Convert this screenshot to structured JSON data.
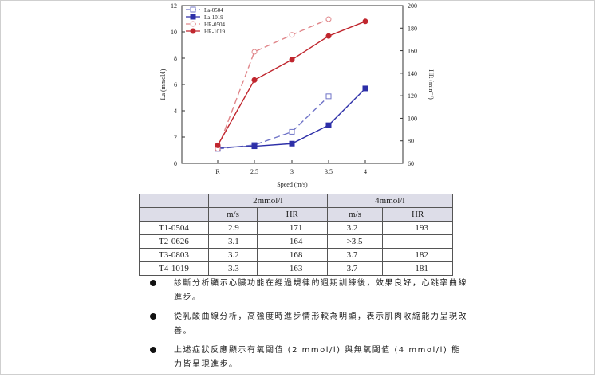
{
  "chart_data": {
    "type": "line",
    "categories": [
      "R",
      "2.5",
      "3",
      "3.5",
      "4"
    ],
    "xlabel": "Speed (m/s)",
    "ylabel_left": "La (mmol/l)",
    "ylabel_right": "HR (min⁻¹)",
    "ylim_left": [
      0,
      12
    ],
    "yticks_left": [
      "0",
      "2",
      "4",
      "6",
      "8",
      "10",
      "12"
    ],
    "ylim_right": [
      60,
      200
    ],
    "yticks_right": [
      "60",
      "80",
      "100",
      "120",
      "140",
      "160",
      "180",
      "200"
    ],
    "legend_position": "top-left",
    "series": [
      {
        "name": "La-0504",
        "axis": "left",
        "color": "#6f73c7",
        "marker": "open-square",
        "dash": true,
        "values": [
          1.1,
          1.4,
          2.4,
          5.1,
          null
        ]
      },
      {
        "name": "La-1019",
        "axis": "left",
        "color": "#2d2fa8",
        "marker": "filled-square",
        "dash": false,
        "values": [
          1.2,
          1.3,
          1.5,
          2.9,
          5.7
        ]
      },
      {
        "name": "HR-0504",
        "axis": "right",
        "color": "#e0868a",
        "marker": "open-circle",
        "dash": true,
        "values": [
          73,
          159,
          174,
          188,
          null
        ]
      },
      {
        "name": "HR-1019",
        "axis": "right",
        "color": "#c0262e",
        "marker": "filled-circle",
        "dash": false,
        "values": [
          76,
          134,
          152,
          173,
          186
        ]
      }
    ]
  },
  "table": {
    "group_headers": [
      "2mmol/l",
      "4mmol/l"
    ],
    "sub_headers": [
      "m/s",
      "HR",
      "m/s",
      "HR"
    ],
    "rows": [
      {
        "label": "T1-0504",
        "cells": [
          "2.9",
          "171",
          "3.2",
          "193"
        ]
      },
      {
        "label": "T2-0626",
        "cells": [
          "3.1",
          "164",
          ">3.5",
          ""
        ]
      },
      {
        "label": "T3-0803",
        "cells": [
          "3.2",
          "168",
          "3.7",
          "182"
        ]
      },
      {
        "label": "T4-1019",
        "cells": [
          "3.3",
          "163",
          "3.7",
          "181"
        ]
      }
    ]
  },
  "notes": [
    "診斷分析顯示心臟功能在經過規律的週期訓練後，效果良好，心跳率曲線進步。",
    "從乳酸曲線分析，高強度時進步情形較為明顯，表示肌肉收縮能力呈現改善。",
    "上述症狀反應顯示有氧閾值 (2 mmol/l) 與無氧閾值 (4 mmol/l) 能力皆呈現進步。"
  ]
}
